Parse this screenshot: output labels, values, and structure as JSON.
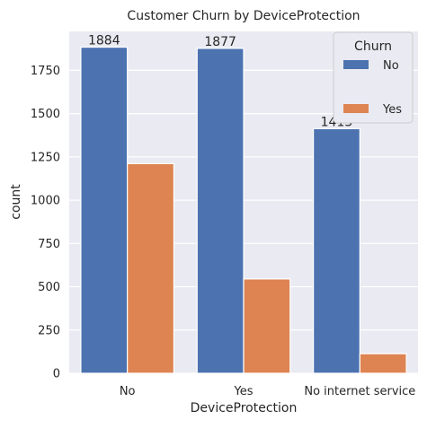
{
  "chart_data": {
    "type": "bar",
    "title": "Customer Churn by DeviceProtection",
    "xlabel": "DeviceProtection",
    "ylabel": "count",
    "categories": [
      "No",
      "Yes",
      "No internet service"
    ],
    "series": [
      {
        "name": "No",
        "values": [
          1884,
          1877,
          1413
        ],
        "color": "#4c72b0"
      },
      {
        "name": "Yes",
        "values": [
          1211,
          545,
          113
        ],
        "color": "#dd8452"
      }
    ],
    "bar_labels": [
      "1884",
      "1877",
      "1413"
    ],
    "ylim": [
      0,
      1975
    ],
    "yticks": [
      0,
      250,
      500,
      750,
      1000,
      1250,
      1500,
      1750
    ],
    "grid": true,
    "legend": {
      "title": "Churn",
      "position": "top-right"
    },
    "background": "#eaeaf2"
  }
}
